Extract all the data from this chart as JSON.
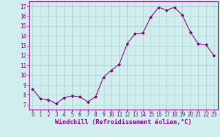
{
  "x": [
    0,
    1,
    2,
    3,
    4,
    5,
    6,
    7,
    8,
    9,
    10,
    11,
    12,
    13,
    14,
    15,
    16,
    17,
    18,
    19,
    20,
    21,
    22,
    23
  ],
  "y": [
    8.6,
    7.6,
    7.5,
    7.1,
    7.7,
    7.9,
    7.8,
    7.3,
    7.8,
    9.8,
    10.5,
    11.1,
    13.2,
    14.2,
    14.3,
    15.9,
    16.9,
    16.6,
    16.9,
    16.1,
    14.4,
    13.2,
    13.1,
    12.0
  ],
  "line_color": "#800080",
  "marker": "D",
  "marker_size": 2.0,
  "bg_color": "#d0eeee",
  "grid_color": "#b0cccc",
  "xlabel": "Windchill (Refroidissement éolien,°C)",
  "xlabel_color": "#800080",
  "tick_color": "#800080",
  "ylim": [
    6.5,
    17.5
  ],
  "xlim": [
    -0.5,
    23.5
  ],
  "yticks": [
    7,
    8,
    9,
    10,
    11,
    12,
    13,
    14,
    15,
    16,
    17
  ],
  "xticks": [
    0,
    1,
    2,
    3,
    4,
    5,
    6,
    7,
    8,
    9,
    10,
    11,
    12,
    13,
    14,
    15,
    16,
    17,
    18,
    19,
    20,
    21,
    22,
    23
  ],
  "tick_fontsize": 5.5,
  "xlabel_fontsize": 6.5
}
